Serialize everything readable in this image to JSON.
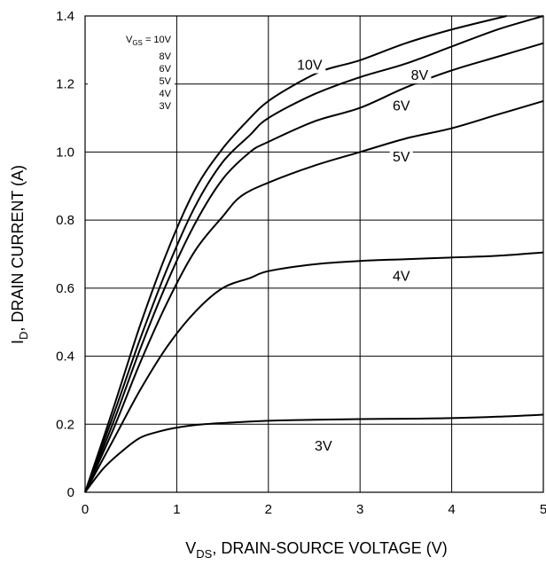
{
  "chart_data": {
    "type": "line",
    "xlabel": {
      "main": "V",
      "sub": "DS",
      "rest": ", DRAIN-SOURCE VOLTAGE (V)"
    },
    "ylabel": {
      "main": "I",
      "sub": "D",
      "rest": ", DRAIN CURRENT (A)"
    },
    "xlim": [
      0,
      5
    ],
    "ylim": [
      0,
      1.4
    ],
    "x_ticks": [
      "0",
      "1",
      "2",
      "3",
      "4",
      "5"
    ],
    "y_ticks": [
      "0",
      "0.2",
      "0.4",
      "0.6",
      "0.8",
      "1.0",
      "1.2",
      "1.4"
    ],
    "grid": true,
    "legend": {
      "placement": "top-left",
      "header_main": "V",
      "header_sub": "GS",
      "header_rest": " = 10V",
      "entries": [
        "8V",
        "6V",
        "5V",
        "4V",
        "3V"
      ]
    },
    "series": [
      {
        "name": "10V",
        "points": [
          [
            0,
            0
          ],
          [
            0.3,
            0.24
          ],
          [
            0.6,
            0.49
          ],
          [
            0.9,
            0.71
          ],
          [
            1.2,
            0.89
          ],
          [
            1.5,
            1.01
          ],
          [
            1.8,
            1.1
          ],
          [
            2.0,
            1.15
          ],
          [
            2.3,
            1.2
          ],
          [
            2.6,
            1.24
          ],
          [
            3.0,
            1.27
          ],
          [
            3.5,
            1.32
          ],
          [
            4.0,
            1.36
          ],
          [
            4.6,
            1.4
          ]
        ]
      },
      {
        "name": "8V",
        "points": [
          [
            0,
            0
          ],
          [
            0.3,
            0.22
          ],
          [
            0.6,
            0.45
          ],
          [
            0.9,
            0.66
          ],
          [
            1.2,
            0.84
          ],
          [
            1.5,
            0.97
          ],
          [
            1.8,
            1.05
          ],
          [
            2.0,
            1.1
          ],
          [
            2.5,
            1.17
          ],
          [
            3.0,
            1.22
          ],
          [
            3.5,
            1.26
          ],
          [
            4.0,
            1.31
          ],
          [
            4.5,
            1.36
          ],
          [
            5.0,
            1.4
          ]
        ]
      },
      {
        "name": "6V",
        "points": [
          [
            0,
            0
          ],
          [
            0.3,
            0.2
          ],
          [
            0.6,
            0.42
          ],
          [
            0.9,
            0.62
          ],
          [
            1.2,
            0.79
          ],
          [
            1.5,
            0.92
          ],
          [
            1.8,
            1.0
          ],
          [
            2.0,
            1.03
          ],
          [
            2.5,
            1.09
          ],
          [
            3.0,
            1.13
          ],
          [
            3.5,
            1.19
          ],
          [
            4.0,
            1.24
          ],
          [
            4.5,
            1.28
          ],
          [
            5.0,
            1.32
          ]
        ]
      },
      {
        "name": "5V",
        "points": [
          [
            0,
            0
          ],
          [
            0.3,
            0.18
          ],
          [
            0.6,
            0.38
          ],
          [
            0.9,
            0.56
          ],
          [
            1.2,
            0.71
          ],
          [
            1.5,
            0.81
          ],
          [
            1.7,
            0.87
          ],
          [
            2.0,
            0.91
          ],
          [
            2.5,
            0.96
          ],
          [
            3.0,
            1.0
          ],
          [
            3.5,
            1.04
          ],
          [
            4.0,
            1.07
          ],
          [
            4.5,
            1.11
          ],
          [
            5.0,
            1.15
          ]
        ]
      },
      {
        "name": "4V",
        "points": [
          [
            0,
            0
          ],
          [
            0.3,
            0.15
          ],
          [
            0.6,
            0.3
          ],
          [
            0.9,
            0.43
          ],
          [
            1.2,
            0.53
          ],
          [
            1.5,
            0.6
          ],
          [
            1.8,
            0.63
          ],
          [
            2.0,
            0.65
          ],
          [
            2.5,
            0.67
          ],
          [
            3.0,
            0.68
          ],
          [
            3.5,
            0.685
          ],
          [
            4.0,
            0.69
          ],
          [
            4.5,
            0.695
          ],
          [
            5.0,
            0.705
          ]
        ]
      },
      {
        "name": "3V",
        "points": [
          [
            0,
            0
          ],
          [
            0.2,
            0.07
          ],
          [
            0.4,
            0.12
          ],
          [
            0.6,
            0.16
          ],
          [
            0.8,
            0.178
          ],
          [
            1.0,
            0.19
          ],
          [
            1.3,
            0.2
          ],
          [
            1.6,
            0.205
          ],
          [
            2.0,
            0.21
          ],
          [
            2.5,
            0.213
          ],
          [
            3.0,
            0.215
          ],
          [
            3.5,
            0.216
          ],
          [
            4.0,
            0.218
          ],
          [
            4.5,
            0.222
          ],
          [
            5.0,
            0.228
          ]
        ]
      }
    ],
    "curve_labels": [
      {
        "text": "10V",
        "x": 2.45,
        "y": 1.255
      },
      {
        "text": "8V",
        "x": 3.65,
        "y": 1.225
      },
      {
        "text": "6V",
        "x": 3.45,
        "y": 1.135
      },
      {
        "text": "5V",
        "x": 3.45,
        "y": 0.985
      },
      {
        "text": "4V",
        "x": 3.45,
        "y": 0.635
      },
      {
        "text": "3V",
        "x": 2.6,
        "y": 0.135
      }
    ]
  }
}
